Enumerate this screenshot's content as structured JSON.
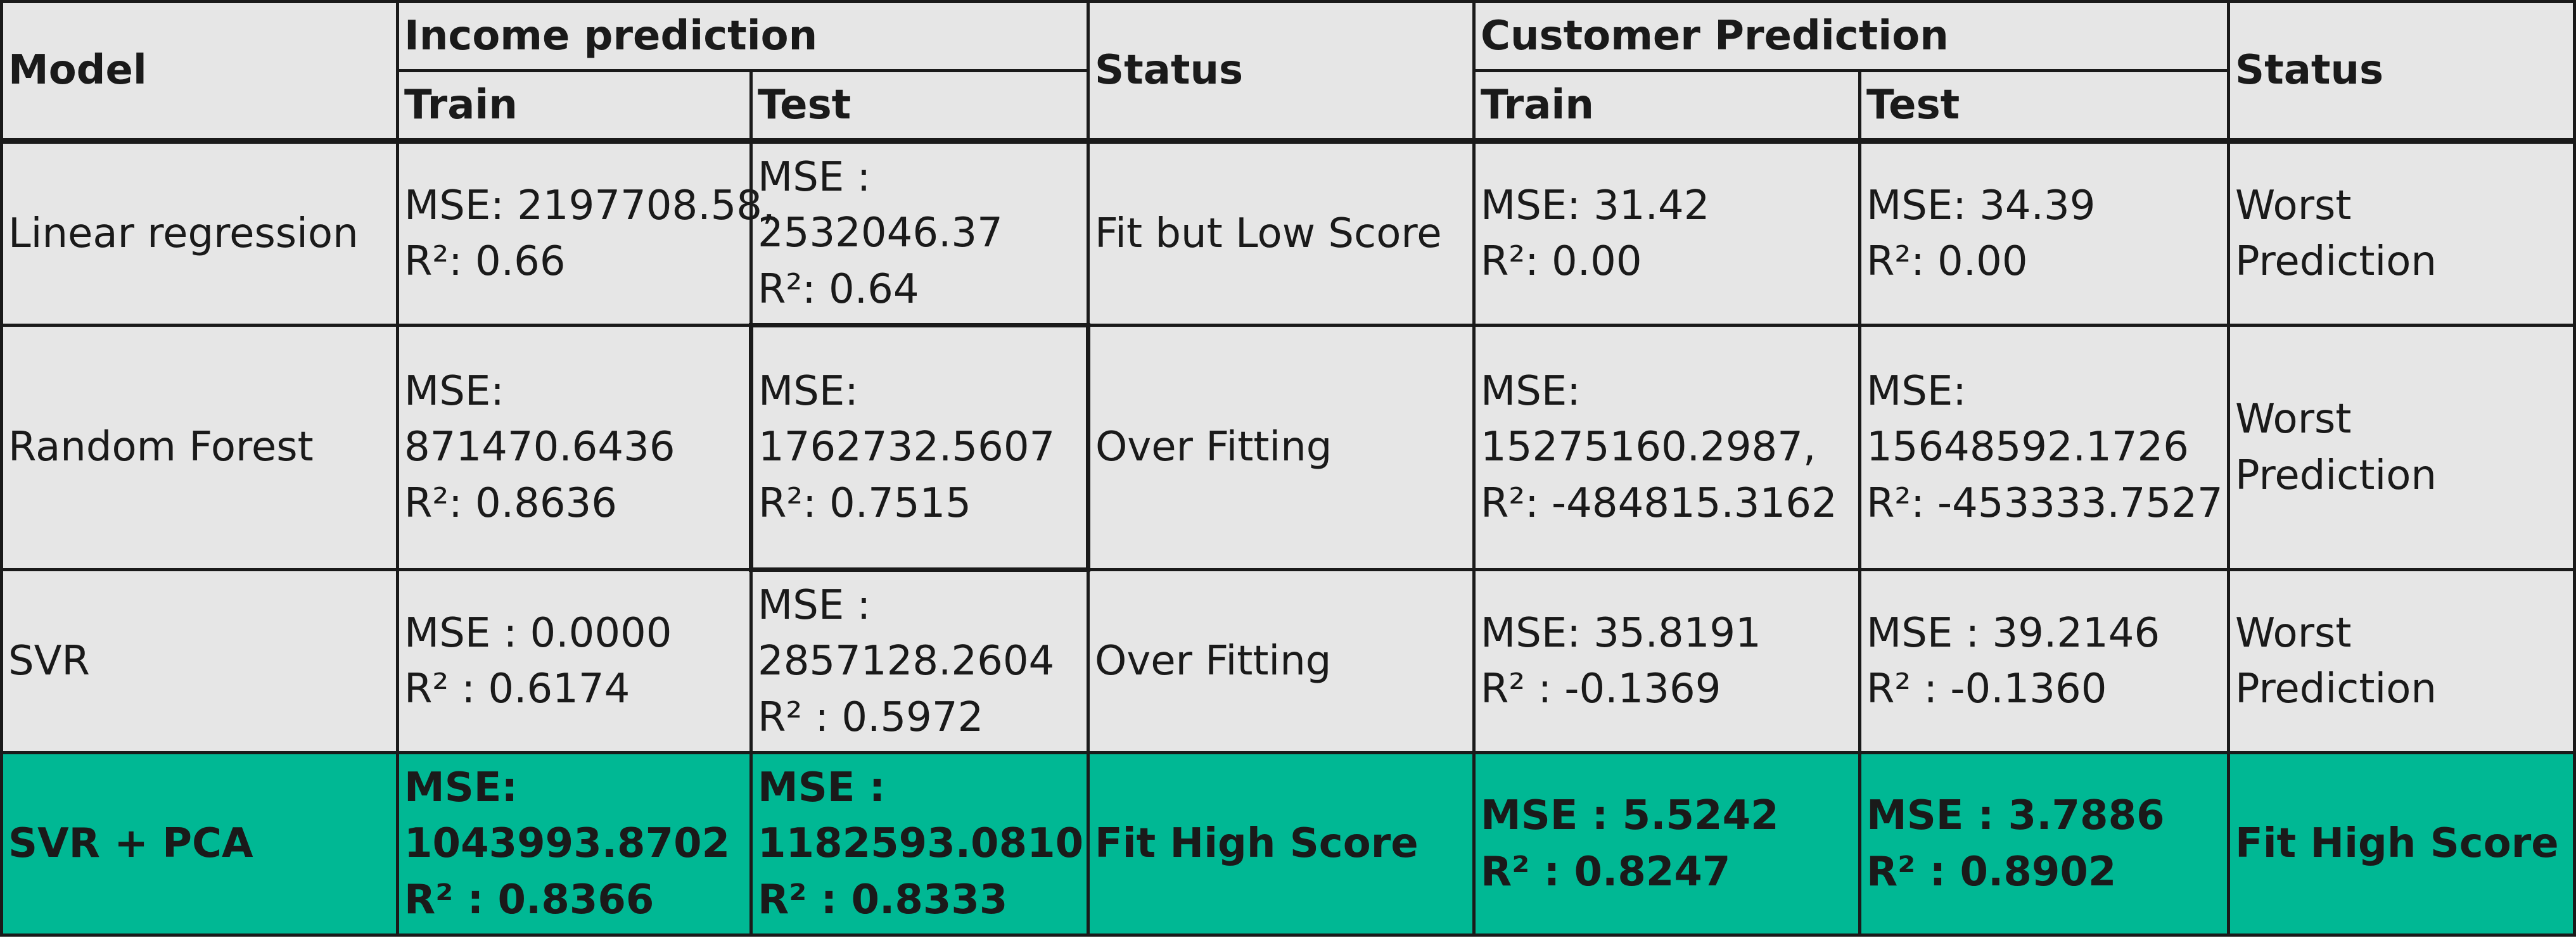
{
  "header": {
    "model": "Model",
    "income_group": "Income prediction",
    "customer_group": "Customer Prediction",
    "status": "Status",
    "train": "Train",
    "test": "Test"
  },
  "rows": [
    {
      "model": "Linear regression",
      "income_train": [
        "MSE: 2197708.58,",
        "R²: 0.66"
      ],
      "income_test": [
        "MSE :",
        "2532046.37",
        "R²: 0.64"
      ],
      "income_status": "Fit but Low Score",
      "customer_train": [
        "MSE: 31.42",
        "R²: 0.00"
      ],
      "customer_test": [
        "MSE: 34.39",
        "R²: 0.00"
      ],
      "customer_status": [
        "Worst",
        "Prediction"
      ]
    },
    {
      "model": "Random Forest",
      "income_train": [
        "MSE:",
        "871470.6436",
        "R²: 0.8636"
      ],
      "income_test": [
        "MSE:",
        "1762732.5607",
        "R²: 0.7515"
      ],
      "income_status": "Over Fitting",
      "customer_train": [
        "MSE:",
        "15275160.2987,",
        "R²: -484815.3162"
      ],
      "customer_test": [
        "MSE:",
        "15648592.1726",
        "R²: -453333.7527"
      ],
      "customer_status": [
        "Worst",
        "Prediction"
      ]
    },
    {
      "model": "SVR",
      "income_train": [
        "MSE : 0.0000",
        "R² : 0.6174"
      ],
      "income_test": [
        "MSE :",
        "2857128.2604",
        "R² : 0.5972"
      ],
      "income_status": "Over Fitting",
      "customer_train": [
        "MSE: 35.8191",
        "R² : -0.1369"
      ],
      "customer_test": [
        "MSE : 39.2146",
        "R² : -0.1360"
      ],
      "customer_status": [
        "Worst",
        "Prediction"
      ]
    },
    {
      "model": "SVR + PCA",
      "income_train": [
        "MSE:",
        "1043993.8702",
        "R² : 0.8366"
      ],
      "income_test": [
        "MSE :",
        "1182593.0810",
        "R² : 0.8333"
      ],
      "income_status": "Fit High Score",
      "customer_train": [
        "MSE : 5.5242",
        "R² : 0.8247"
      ],
      "customer_test": [
        "MSE : 3.7886",
        "R² : 0.8902"
      ],
      "customer_status": [
        "Fit High Score"
      ]
    }
  ],
  "colors": {
    "cell_background": "#e6e6e6",
    "highlight_row": "#00b894",
    "border": "#1a1a1a",
    "text": "#1a1a1a"
  }
}
